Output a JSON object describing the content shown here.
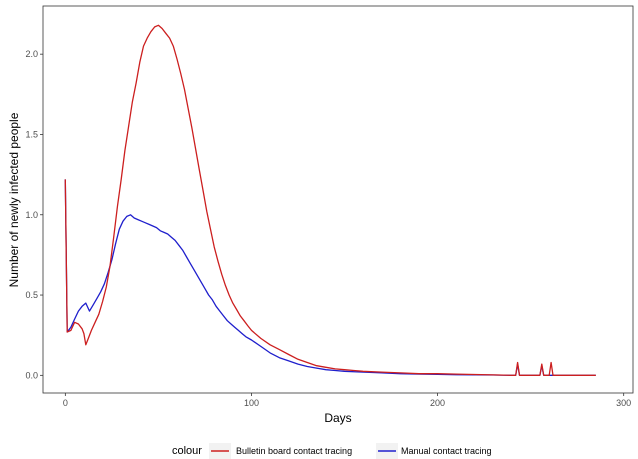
{
  "chart_data": {
    "type": "line",
    "title": "",
    "xlabel": "Days",
    "ylabel": "Number of newly infected people",
    "xlim": [
      -12,
      305
    ],
    "ylim": [
      -0.11,
      2.3
    ],
    "x_ticks": [
      0,
      100,
      200,
      300
    ],
    "x_tick_labels": [
      "0",
      "100",
      "200",
      "300"
    ],
    "y_ticks": [
      0.0,
      0.5,
      1.0,
      1.5,
      2.0
    ],
    "y_tick_labels": [
      "0.0",
      "0.5",
      "1.0",
      "1.5",
      "2.0"
    ],
    "grid": false,
    "legend": {
      "position": "bottom",
      "title": "colour",
      "entries": [
        "Bulletin board contact tracing",
        "Manual contact tracing"
      ]
    },
    "series": [
      {
        "name": "Bulletin board contact tracing",
        "color": "#cc1f1f",
        "points": [
          [
            0,
            1.22
          ],
          [
            1,
            0.27
          ],
          [
            3,
            0.28
          ],
          [
            5,
            0.33
          ],
          [
            7,
            0.32
          ],
          [
            9,
            0.29
          ],
          [
            10,
            0.26
          ],
          [
            11,
            0.19
          ],
          [
            12,
            0.22
          ],
          [
            14,
            0.28
          ],
          [
            16,
            0.33
          ],
          [
            18,
            0.38
          ],
          [
            20,
            0.46
          ],
          [
            22,
            0.55
          ],
          [
            24,
            0.68
          ],
          [
            26,
            0.86
          ],
          [
            28,
            1.05
          ],
          [
            30,
            1.22
          ],
          [
            32,
            1.4
          ],
          [
            34,
            1.55
          ],
          [
            36,
            1.7
          ],
          [
            38,
            1.82
          ],
          [
            40,
            1.95
          ],
          [
            42,
            2.05
          ],
          [
            44,
            2.1
          ],
          [
            46,
            2.14
          ],
          [
            48,
            2.17
          ],
          [
            50,
            2.18
          ],
          [
            52,
            2.16
          ],
          [
            54,
            2.13
          ],
          [
            56,
            2.1
          ],
          [
            58,
            2.05
          ],
          [
            60,
            1.97
          ],
          [
            62,
            1.88
          ],
          [
            64,
            1.78
          ],
          [
            66,
            1.66
          ],
          [
            68,
            1.54
          ],
          [
            70,
            1.41
          ],
          [
            72,
            1.28
          ],
          [
            74,
            1.15
          ],
          [
            76,
            1.02
          ],
          [
            78,
            0.91
          ],
          [
            80,
            0.8
          ],
          [
            82,
            0.71
          ],
          [
            84,
            0.63
          ],
          [
            86,
            0.56
          ],
          [
            88,
            0.5
          ],
          [
            90,
            0.45
          ],
          [
            92,
            0.41
          ],
          [
            94,
            0.37
          ],
          [
            96,
            0.34
          ],
          [
            98,
            0.31
          ],
          [
            100,
            0.28
          ],
          [
            105,
            0.23
          ],
          [
            110,
            0.19
          ],
          [
            115,
            0.16
          ],
          [
            120,
            0.13
          ],
          [
            125,
            0.1
          ],
          [
            130,
            0.08
          ],
          [
            135,
            0.06
          ],
          [
            140,
            0.05
          ],
          [
            145,
            0.04
          ],
          [
            150,
            0.035
          ],
          [
            155,
            0.03
          ],
          [
            160,
            0.025
          ],
          [
            170,
            0.02
          ],
          [
            180,
            0.015
          ],
          [
            190,
            0.01
          ],
          [
            200,
            0.01
          ],
          [
            210,
            0.008
          ],
          [
            220,
            0.005
          ],
          [
            230,
            0.003
          ],
          [
            240,
            0.0
          ],
          [
            242,
            0.0
          ],
          [
            243,
            0.08
          ],
          [
            244,
            0.0
          ],
          [
            255,
            0.0
          ],
          [
            256,
            0.07
          ],
          [
            257,
            0.0
          ],
          [
            260,
            0.0
          ],
          [
            261,
            0.08
          ],
          [
            262,
            0.0
          ],
          [
            285,
            0.0
          ]
        ]
      },
      {
        "name": "Manual contact tracing",
        "color": "#1f1fcc",
        "points": [
          [
            0,
            1.22
          ],
          [
            1,
            0.27
          ],
          [
            3,
            0.3
          ],
          [
            5,
            0.35
          ],
          [
            7,
            0.4
          ],
          [
            9,
            0.43
          ],
          [
            11,
            0.45
          ],
          [
            13,
            0.4
          ],
          [
            15,
            0.44
          ],
          [
            17,
            0.48
          ],
          [
            19,
            0.52
          ],
          [
            21,
            0.57
          ],
          [
            23,
            0.64
          ],
          [
            25,
            0.72
          ],
          [
            27,
            0.82
          ],
          [
            29,
            0.91
          ],
          [
            31,
            0.96
          ],
          [
            33,
            0.99
          ],
          [
            35,
            1.0
          ],
          [
            37,
            0.98
          ],
          [
            39,
            0.97
          ],
          [
            41,
            0.96
          ],
          [
            43,
            0.95
          ],
          [
            45,
            0.94
          ],
          [
            47,
            0.93
          ],
          [
            49,
            0.92
          ],
          [
            51,
            0.9
          ],
          [
            53,
            0.89
          ],
          [
            55,
            0.88
          ],
          [
            57,
            0.86
          ],
          [
            59,
            0.84
          ],
          [
            61,
            0.81
          ],
          [
            63,
            0.78
          ],
          [
            65,
            0.74
          ],
          [
            67,
            0.7
          ],
          [
            69,
            0.66
          ],
          [
            71,
            0.62
          ],
          [
            73,
            0.58
          ],
          [
            75,
            0.54
          ],
          [
            77,
            0.5
          ],
          [
            79,
            0.47
          ],
          [
            81,
            0.43
          ],
          [
            83,
            0.4
          ],
          [
            85,
            0.37
          ],
          [
            87,
            0.34
          ],
          [
            89,
            0.32
          ],
          [
            91,
            0.3
          ],
          [
            93,
            0.28
          ],
          [
            95,
            0.26
          ],
          [
            97,
            0.24
          ],
          [
            100,
            0.22
          ],
          [
            105,
            0.18
          ],
          [
            110,
            0.14
          ],
          [
            115,
            0.11
          ],
          [
            120,
            0.09
          ],
          [
            125,
            0.07
          ],
          [
            130,
            0.055
          ],
          [
            135,
            0.045
          ],
          [
            140,
            0.035
          ],
          [
            145,
            0.03
          ],
          [
            150,
            0.025
          ],
          [
            160,
            0.02
          ],
          [
            170,
            0.015
          ],
          [
            180,
            0.01
          ],
          [
            190,
            0.008
          ],
          [
            200,
            0.006
          ],
          [
            210,
            0.004
          ],
          [
            220,
            0.003
          ],
          [
            230,
            0.002
          ],
          [
            240,
            0.0
          ],
          [
            242,
            0.0
          ],
          [
            243,
            0.07
          ],
          [
            244,
            0.0
          ],
          [
            255,
            0.0
          ],
          [
            256,
            0.06
          ],
          [
            257,
            0.0
          ],
          [
            285,
            0.0
          ]
        ]
      }
    ]
  }
}
